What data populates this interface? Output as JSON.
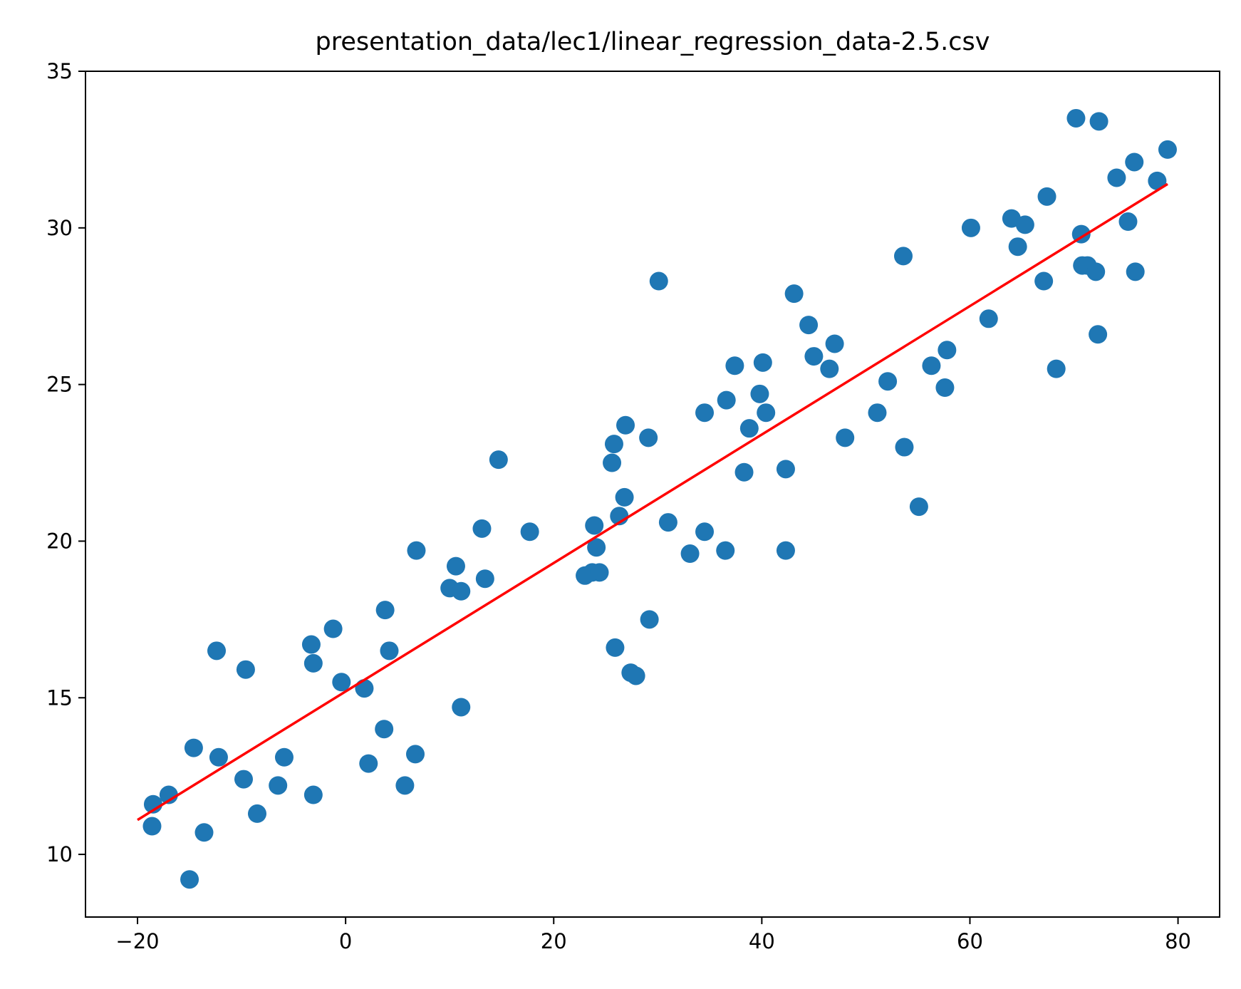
{
  "chart_data": {
    "type": "scatter",
    "title": "presentation_data/lec1/linear_regression_data-2.5.csv",
    "xlabel": "",
    "ylabel": "",
    "xlim": [
      -25,
      84
    ],
    "ylim": [
      8,
      35
    ],
    "x_ticks": [
      {
        "value": -20,
        "label": "−20"
      },
      {
        "value": 0,
        "label": "0"
      },
      {
        "value": 20,
        "label": "20"
      },
      {
        "value": 40,
        "label": "40"
      },
      {
        "value": 60,
        "label": "60"
      },
      {
        "value": 80,
        "label": "80"
      }
    ],
    "y_ticks": [
      {
        "value": 10,
        "label": "10"
      },
      {
        "value": 15,
        "label": "15"
      },
      {
        "value": 20,
        "label": "20"
      },
      {
        "value": 25,
        "label": "25"
      },
      {
        "value": 30,
        "label": "30"
      },
      {
        "value": 35,
        "label": "35"
      }
    ],
    "grid": false,
    "legend": "none",
    "series": [
      {
        "kind": "scatter",
        "color": "#1f77b4",
        "points": [
          {
            "x": -18.5,
            "y": 11.6
          },
          {
            "x": -18.6,
            "y": 10.9
          },
          {
            "x": -17.0,
            "y": 11.9
          },
          {
            "x": -15.0,
            "y": 9.2
          },
          {
            "x": -14.6,
            "y": 13.4
          },
          {
            "x": -13.6,
            "y": 10.7
          },
          {
            "x": -12.4,
            "y": 16.5
          },
          {
            "x": -12.2,
            "y": 13.1
          },
          {
            "x": -9.8,
            "y": 12.4
          },
          {
            "x": -9.6,
            "y": 15.9
          },
          {
            "x": -8.5,
            "y": 11.3
          },
          {
            "x": -6.5,
            "y": 12.2
          },
          {
            "x": -5.9,
            "y": 13.1
          },
          {
            "x": -3.3,
            "y": 16.7
          },
          {
            "x": -3.1,
            "y": 16.1
          },
          {
            "x": -3.1,
            "y": 11.9
          },
          {
            "x": -1.2,
            "y": 17.2
          },
          {
            "x": -0.4,
            "y": 15.5
          },
          {
            "x": 1.8,
            "y": 15.3
          },
          {
            "x": 2.2,
            "y": 12.9
          },
          {
            "x": 3.8,
            "y": 17.8
          },
          {
            "x": 3.7,
            "y": 14.0
          },
          {
            "x": 4.2,
            "y": 16.5
          },
          {
            "x": 5.7,
            "y": 12.2
          },
          {
            "x": 6.7,
            "y": 13.2
          },
          {
            "x": 6.8,
            "y": 19.7
          },
          {
            "x": 10.0,
            "y": 18.5
          },
          {
            "x": 10.6,
            "y": 19.2
          },
          {
            "x": 11.1,
            "y": 18.4
          },
          {
            "x": 11.1,
            "y": 14.7
          },
          {
            "x": 13.1,
            "y": 20.4
          },
          {
            "x": 13.4,
            "y": 18.8
          },
          {
            "x": 14.7,
            "y": 22.6
          },
          {
            "x": 17.7,
            "y": 20.3
          },
          {
            "x": 23.0,
            "y": 18.9
          },
          {
            "x": 23.7,
            "y": 19.0
          },
          {
            "x": 24.4,
            "y": 19.0
          },
          {
            "x": 23.9,
            "y": 20.5
          },
          {
            "x": 24.1,
            "y": 19.8
          },
          {
            "x": 25.6,
            "y": 22.5
          },
          {
            "x": 25.8,
            "y": 23.1
          },
          {
            "x": 25.9,
            "y": 16.6
          },
          {
            "x": 26.3,
            "y": 20.8
          },
          {
            "x": 26.8,
            "y": 21.4
          },
          {
            "x": 26.9,
            "y": 23.7
          },
          {
            "x": 27.4,
            "y": 15.8
          },
          {
            "x": 27.9,
            "y": 15.7
          },
          {
            "x": 29.1,
            "y": 23.3
          },
          {
            "x": 29.2,
            "y": 17.5
          },
          {
            "x": 30.1,
            "y": 28.3
          },
          {
            "x": 31.0,
            "y": 20.6
          },
          {
            "x": 33.1,
            "y": 19.6
          },
          {
            "x": 34.5,
            "y": 20.3
          },
          {
            "x": 34.5,
            "y": 24.1
          },
          {
            "x": 36.5,
            "y": 19.7
          },
          {
            "x": 36.6,
            "y": 24.5
          },
          {
            "x": 37.4,
            "y": 25.6
          },
          {
            "x": 38.3,
            "y": 22.2
          },
          {
            "x": 38.8,
            "y": 23.6
          },
          {
            "x": 39.8,
            "y": 24.7
          },
          {
            "x": 40.1,
            "y": 25.7
          },
          {
            "x": 40.4,
            "y": 24.1
          },
          {
            "x": 42.3,
            "y": 22.3
          },
          {
            "x": 42.3,
            "y": 19.7
          },
          {
            "x": 43.1,
            "y": 27.9
          },
          {
            "x": 44.5,
            "y": 26.9
          },
          {
            "x": 45.0,
            "y": 25.9
          },
          {
            "x": 46.5,
            "y": 25.5
          },
          {
            "x": 47.0,
            "y": 26.3
          },
          {
            "x": 48.0,
            "y": 23.3
          },
          {
            "x": 51.1,
            "y": 24.1
          },
          {
            "x": 52.1,
            "y": 25.1
          },
          {
            "x": 53.6,
            "y": 29.1
          },
          {
            "x": 53.7,
            "y": 23.0
          },
          {
            "x": 55.1,
            "y": 21.1
          },
          {
            "x": 56.3,
            "y": 25.6
          },
          {
            "x": 57.6,
            "y": 24.9
          },
          {
            "x": 57.8,
            "y": 26.1
          },
          {
            "x": 60.1,
            "y": 30.0
          },
          {
            "x": 61.8,
            "y": 27.1
          },
          {
            "x": 64.0,
            "y": 30.3
          },
          {
            "x": 64.6,
            "y": 29.4
          },
          {
            "x": 65.3,
            "y": 30.1
          },
          {
            "x": 67.1,
            "y": 28.3
          },
          {
            "x": 67.4,
            "y": 31.0
          },
          {
            "x": 68.3,
            "y": 25.5
          },
          {
            "x": 70.2,
            "y": 33.5
          },
          {
            "x": 70.7,
            "y": 29.8
          },
          {
            "x": 70.8,
            "y": 28.8
          },
          {
            "x": 71.3,
            "y": 28.8
          },
          {
            "x": 72.1,
            "y": 28.6
          },
          {
            "x": 72.4,
            "y": 33.4
          },
          {
            "x": 72.3,
            "y": 26.6
          },
          {
            "x": 74.1,
            "y": 31.6
          },
          {
            "x": 75.2,
            "y": 30.2
          },
          {
            "x": 75.8,
            "y": 32.1
          },
          {
            "x": 75.9,
            "y": 28.6
          },
          {
            "x": 78.0,
            "y": 31.5
          },
          {
            "x": 79.0,
            "y": 32.5
          }
        ]
      },
      {
        "kind": "line",
        "color": "#ff0000",
        "points": [
          {
            "x": -20,
            "y": 11.1
          },
          {
            "x": 79,
            "y": 31.4
          }
        ]
      }
    ]
  }
}
